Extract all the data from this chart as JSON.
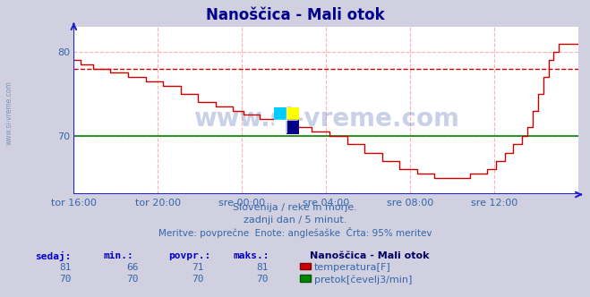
{
  "title": "Nanoščica - Mali otok",
  "title_color": "#00008B",
  "bg_color": "#d0d0e0",
  "plot_bg_color": "#ffffff",
  "grid_color": "#ffb0b0",
  "xaxis_line_color": "#2222cc",
  "yaxis_line_color": "#2222cc",
  "xlim": [
    0,
    288
  ],
  "ylim": [
    63,
    83
  ],
  "yticks": [
    70,
    80
  ],
  "xtick_labels": [
    "tor 16:00",
    "tor 20:00",
    "sre 00:00",
    "sre 04:00",
    "sre 08:00",
    "sre 12:00"
  ],
  "xtick_positions": [
    0,
    48,
    96,
    144,
    192,
    240
  ],
  "temp_color": "#cc0000",
  "flow_color": "#008800",
  "avg_line_color": "#cc0000",
  "avg_line_value": 78.0,
  "flow_value": 70,
  "watermark_text": "www.si-vreme.com",
  "subtitle1": "Slovenija / reke in morje.",
  "subtitle2": "zadnji dan / 5 minut.",
  "subtitle3": "Meritve: povprečne  Enote: anglešaške  Črta: 95% meritev",
  "legend_title": "Nanoščica - Mali otok",
  "leg1_label": "temperatura[F]",
  "leg2_label": "pretok[čevelj3/min]",
  "table_headers": [
    "sedaj:",
    "min.:",
    "povpr.:",
    "maks.:"
  ],
  "row1": [
    81,
    66,
    71,
    81
  ],
  "row2": [
    70,
    70,
    70,
    70
  ],
  "text_color": "#3366aa",
  "table_header_color": "#0000cc",
  "left_watermark": "www.si-vreme.com"
}
